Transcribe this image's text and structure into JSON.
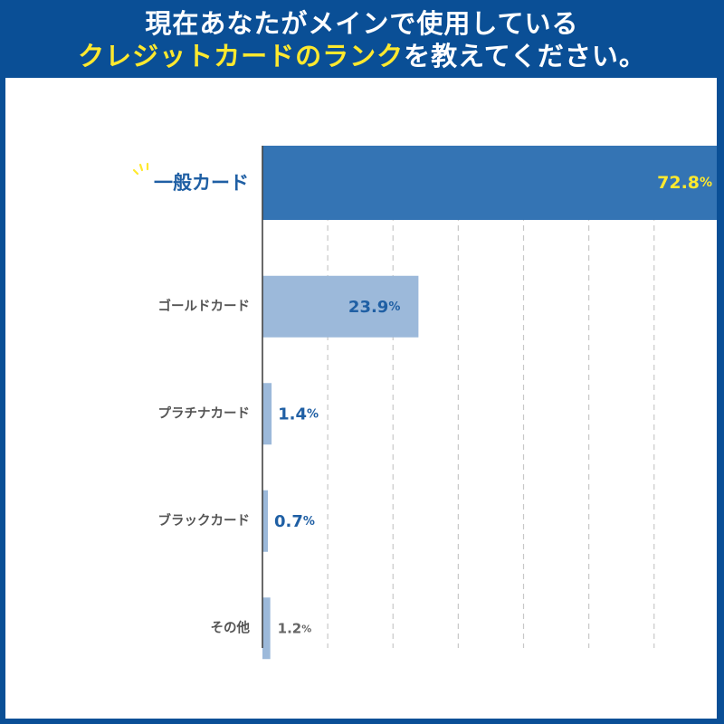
{
  "header": {
    "line1": "現在あなたがメインで使用している",
    "line2_highlight": "クレジットカードのランク",
    "line2_rest": "を教えてください。"
  },
  "chart_data": {
    "type": "bar",
    "orientation": "horizontal",
    "title": "現在あなたがメインで使用しているクレジットカードのランクを教えてください。",
    "categories": [
      "一般カード",
      "ゴールドカード",
      "プラチナカード",
      "ブラックカード",
      "その他"
    ],
    "values": [
      72.8,
      23.9,
      1.4,
      0.7,
      1.2
    ],
    "value_suffix": "%",
    "xlim": [
      0,
      80
    ],
    "grid": true,
    "highlight_index": 0
  },
  "colors": {
    "header_bg": "#0a4f96",
    "highlight_text": "#ffe92e",
    "bar_main": "#3474b4",
    "bar_other": "#9cb9da",
    "label_main": "#1f5fa4",
    "label_other": "#555555",
    "value_blue": "#1f5fa4",
    "value_gray": "#666666",
    "grid": "#c8c8c8",
    "axis": "#444444"
  }
}
